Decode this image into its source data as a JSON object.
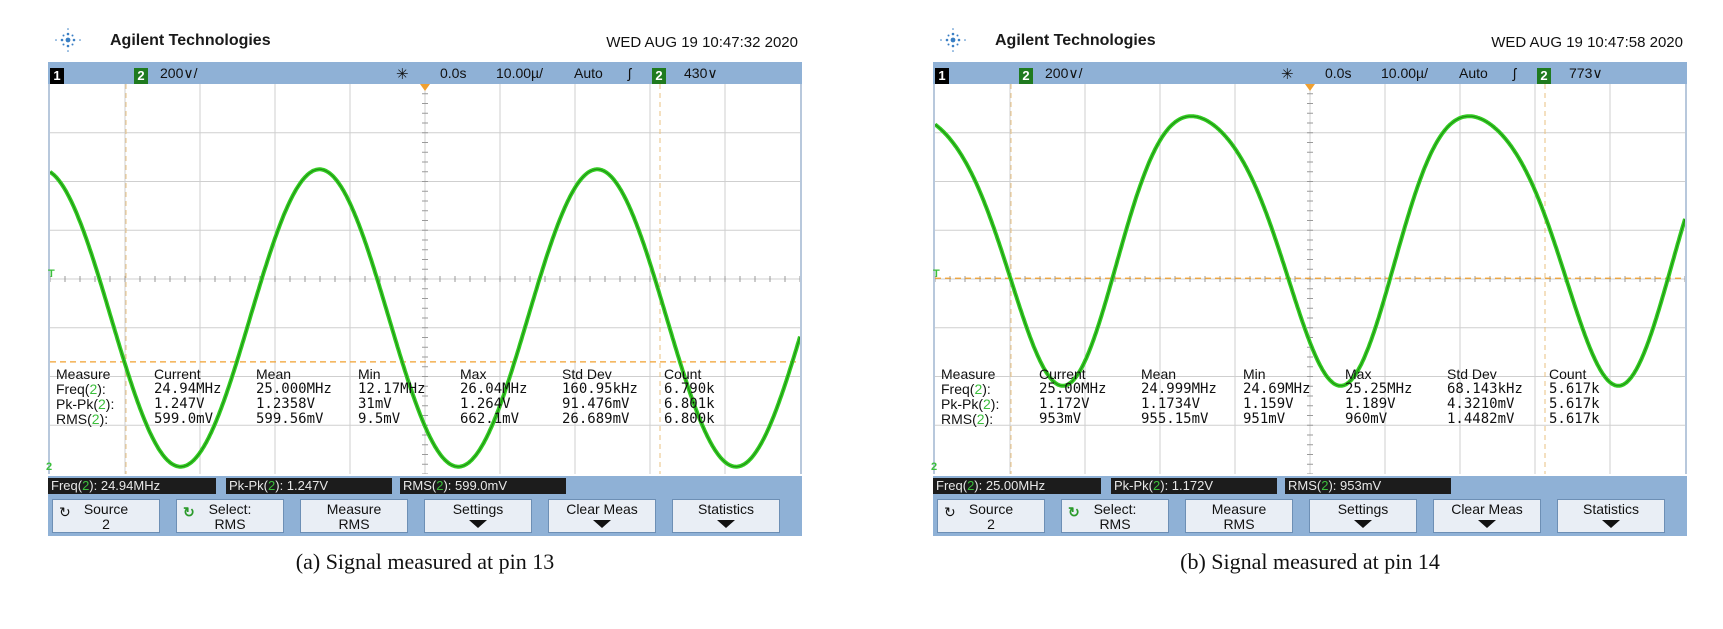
{
  "panels": [
    {
      "brand": "Agilent Technologies",
      "timestamp": "WED AUG 19 10:47:32 2020",
      "status": {
        "ch1_chip": "1",
        "ch2_chip": "2",
        "ch2_scale": "200∨/",
        "delay": "0.0s",
        "timebase": "10.00µ/",
        "mode": "Auto",
        "trigger_slope": "ʃ",
        "trig_src_chip": "2",
        "trigger_level": "430∨"
      },
      "trace": {
        "dc": 0.61,
        "amp": 0.61,
        "h2": 0.0,
        "phase": 0.28,
        "cycles": 2.7
      },
      "markers": {
        "trigger": "T",
        "channel": "2"
      },
      "table": {
        "headers": [
          "Measure",
          "Current",
          "Mean",
          "Min",
          "Max",
          "Std Dev",
          "Count"
        ],
        "rows": [
          {
            "label_pre": "Freq(",
            "label_ch": "2",
            "label_post": "):",
            "values": [
              "24.94MHz",
              "25.000MHz",
              "12.17MHz",
              "26.04MHz",
              "160.95kHz",
              "6.790k"
            ]
          },
          {
            "label_pre": "Pk-Pk(",
            "label_ch": "2",
            "label_post": "):",
            "values": [
              "1.247V",
              "1.2358V",
              "31mV",
              "1.264V",
              "91.476mV",
              "6.801k"
            ]
          },
          {
            "label_pre": "RMS(",
            "label_ch": "2",
            "label_post": "):",
            "values": [
              "599.0mV",
              "599.56mV",
              "9.5mV",
              "662.1mV",
              "26.689mV",
              "6.800k"
            ]
          }
        ]
      },
      "readouts": [
        {
          "pre": "Freq(",
          "ch": "2",
          "post": "): 24.94MHz"
        },
        {
          "pre": "Pk-Pk(",
          "ch": "2",
          "post": "): 1.247V"
        },
        {
          "pre": "RMS(",
          "ch": "2",
          "post": "): 599.0mV"
        }
      ],
      "softkeys": [
        {
          "l1": "Source",
          "l2": "2",
          "icon": "↻"
        },
        {
          "l1": "Select:",
          "l2": "RMS",
          "icon": "↻"
        },
        {
          "l1": "Measure",
          "l2": "RMS"
        },
        {
          "l1": "Settings"
        },
        {
          "l1": "Clear Meas"
        },
        {
          "l1": "Statistics"
        }
      ],
      "caption": "(a) Signal measured at pin 13"
    },
    {
      "brand": "Agilent Technologies",
      "timestamp": "WED AUG 19 10:47:58 2020",
      "status": {
        "ch1_chip": "1",
        "ch2_chip": "2",
        "ch2_scale": "200∨/",
        "delay": "0.0s",
        "timebase": "10.00µ/",
        "mode": "Auto",
        "trigger_slope": "ʃ",
        "trig_src_chip": "2",
        "trigger_level": "773∨"
      },
      "trace": {
        "dc": 0.95,
        "amp": 0.55,
        "h2": 0.13,
        "phase": 0.3,
        "cycles": 2.7
      },
      "markers": {
        "trigger": "T",
        "channel": "2"
      },
      "table": {
        "headers": [
          "Measure",
          "Current",
          "Mean",
          "Min",
          "Max",
          "Std Dev",
          "Count"
        ],
        "rows": [
          {
            "label_pre": "Freq(",
            "label_ch": "2",
            "label_post": "):",
            "values": [
              "25.00MHz",
              "24.999MHz",
              "24.69MHz",
              "25.25MHz",
              "68.143kHz",
              "5.617k"
            ]
          },
          {
            "label_pre": "Pk-Pk(",
            "label_ch": "2",
            "label_post": "):",
            "values": [
              "1.172V",
              "1.1734V",
              "1.159V",
              "1.189V",
              "4.3210mV",
              "5.617k"
            ]
          },
          {
            "label_pre": "RMS(",
            "label_ch": "2",
            "label_post": "):",
            "values": [
              "953mV",
              "955.15mV",
              "951mV",
              "960mV",
              "1.4482mV",
              "5.617k"
            ]
          }
        ]
      },
      "readouts": [
        {
          "pre": "Freq(",
          "ch": "2",
          "post": "): 25.00MHz"
        },
        {
          "pre": "Pk-Pk(",
          "ch": "2",
          "post": "): 1.172V"
        },
        {
          "pre": "RMS(",
          "ch": "2",
          "post": "): 953mV"
        }
      ],
      "softkeys": [
        {
          "l1": "Source",
          "l2": "2",
          "icon": "↻"
        },
        {
          "l1": "Select:",
          "l2": "RMS",
          "icon": "↻"
        },
        {
          "l1": "Measure",
          "l2": "RMS"
        },
        {
          "l1": "Settings"
        },
        {
          "l1": "Clear Meas"
        },
        {
          "l1": "Statistics"
        }
      ],
      "caption": "(b) Signal measured at pin 14"
    }
  ],
  "colors": {
    "trace": "#33cc22",
    "statusbar": "#8fb1d6",
    "channel": "#3cbf3c",
    "trigger_line": "#f0a030"
  }
}
